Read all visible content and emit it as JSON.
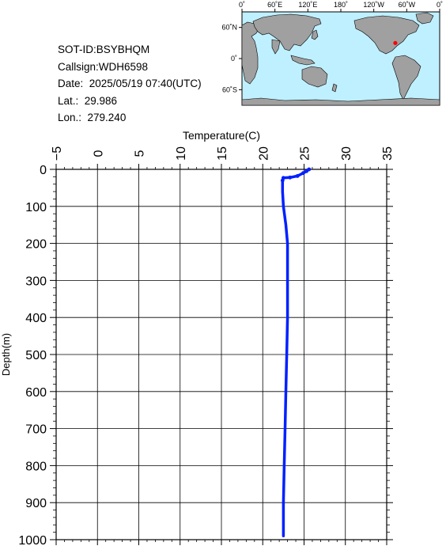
{
  "info": {
    "sot_id": "SOT-ID:BSYBHQM",
    "callsign": "Callsign:WDH6598",
    "date": "Date:  2025/05/19 07:40(UTC)",
    "lat": "Lat.:  29.986",
    "lon": "Lon.:  279.240"
  },
  "map": {
    "top_labels": [
      "0˚",
      "60˚E",
      "120˚E",
      "180˚",
      "120˚W",
      "60˚W",
      "0˚"
    ],
    "left_labels": [
      "60˚N",
      "0˚",
      "60˚S"
    ],
    "ocean_color": "#bff0ff",
    "land_color": "#a0a0a0",
    "marker_color": "#ff0000",
    "marker": {
      "lat": 29.986,
      "lon": 279.24
    }
  },
  "chart_data": {
    "type": "line",
    "title": "",
    "xlabel": "Temperature(C)",
    "ylabel": "Depth(m)",
    "xlim": [
      -5,
      35
    ],
    "ylim": [
      0,
      1000
    ],
    "y_inverted": true,
    "x_axis_position": "top",
    "grid": true,
    "x_ticks": [
      "−5",
      "0",
      "5",
      "10",
      "15",
      "20",
      "25",
      "30",
      "35"
    ],
    "y_ticks": [
      "0",
      "100",
      "200",
      "300",
      "400",
      "500",
      "600",
      "700",
      "800",
      "900",
      "1000"
    ],
    "series": [
      {
        "color": "#0020ff",
        "points": [
          {
            "t": 25.6,
            "d": 0
          },
          {
            "t": 25.3,
            "d": 5
          },
          {
            "t": 24.9,
            "d": 10
          },
          {
            "t": 24.2,
            "d": 18
          },
          {
            "t": 23.3,
            "d": 22
          },
          {
            "t": 22.5,
            "d": 23
          },
          {
            "t": 22.4,
            "d": 30
          },
          {
            "t": 22.4,
            "d": 60
          },
          {
            "t": 22.5,
            "d": 100
          },
          {
            "t": 22.8,
            "d": 150
          },
          {
            "t": 23.0,
            "d": 200
          },
          {
            "t": 23.0,
            "d": 300
          },
          {
            "t": 23.0,
            "d": 400
          },
          {
            "t": 22.9,
            "d": 500
          },
          {
            "t": 22.8,
            "d": 600
          },
          {
            "t": 22.7,
            "d": 700
          },
          {
            "t": 22.6,
            "d": 800
          },
          {
            "t": 22.5,
            "d": 900
          },
          {
            "t": 22.5,
            "d": 990
          }
        ]
      }
    ]
  }
}
